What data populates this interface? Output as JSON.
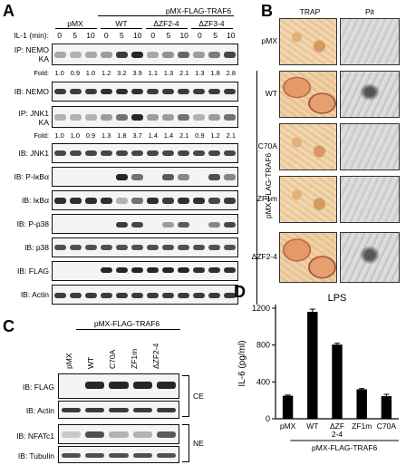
{
  "panels": {
    "a": "A",
    "b": "B",
    "c": "C",
    "d": "D"
  },
  "panelA": {
    "construct_header": "pMX-FLAG-TRAF6",
    "group_labels": [
      "pMX",
      "WT",
      "ΔZF2-4",
      "ΔZF3-4"
    ],
    "timepoint_title": "IL-1 (min):",
    "timepoints": [
      "0",
      "5",
      "10",
      "0",
      "5",
      "10",
      "0",
      "5",
      "10",
      "0",
      "5",
      "10"
    ],
    "nemo_ka": [
      "IP: NEMO",
      "KA"
    ],
    "fold_label": "Fold:",
    "fold_nemo": [
      "1.0",
      "0.9",
      "1.0",
      "1.2",
      "3.2",
      "3.9",
      "1.1",
      "1.3",
      "2.1",
      "1.3",
      "1.8",
      "2.8"
    ],
    "jnk_ka": [
      "IP: JNK1",
      "KA"
    ],
    "fold_jnk": [
      "1.0",
      "1.0",
      "0.9",
      "1.3",
      "1.8",
      "3.7",
      "1.4",
      "1.4",
      "2.1",
      "0.9",
      "1.2",
      "2.1"
    ],
    "blot_labels": [
      "IB: NEMO",
      "IB: JNK1",
      "IB: P-IκBα",
      "IB: IκBα",
      "IB: P-p38",
      "IB: p38",
      "IB: FLAG",
      "IB: Actin"
    ]
  },
  "panelB": {
    "col_headers": [
      "TRAP",
      "Pit"
    ],
    "rows": [
      "pMX",
      "WT",
      "C70A",
      "ZF1m",
      "ΔZF2-4"
    ],
    "side_label": "pMX-FLAG-TRAF6"
  },
  "panelC": {
    "construct_header": "pMX-FLAG-TRAF6",
    "lanes": [
      "pMX",
      "WT",
      "C70A",
      "ZF1m",
      "ΔZF2-4"
    ],
    "blot_labels": [
      "IB: FLAG",
      "IB: Actin",
      "IB: NFATc1",
      "IB: Tubulin"
    ],
    "fractions": [
      "CE",
      "NE"
    ]
  },
  "panelD": {
    "title": "LPS",
    "ylabel": "IL-6 (pg/ml)",
    "construct_footer": "pMX-FLAG-TRAF6"
  },
  "chart_data": {
    "type": "bar",
    "title": "LPS",
    "xlabel": "",
    "ylabel": "IL-6 (pg/ml)",
    "categories": [
      "pMX",
      "WT",
      "ΔZF 2-4",
      "ZF1m",
      "C70A"
    ],
    "values": [
      250,
      1160,
      805,
      320,
      245
    ],
    "errors": [
      8,
      30,
      15,
      8,
      20
    ],
    "ylim": [
      0,
      1200
    ],
    "yticks": [
      "0",
      "400",
      "800",
      "1200"
    ],
    "grid": false,
    "bar_color": "#000000"
  }
}
